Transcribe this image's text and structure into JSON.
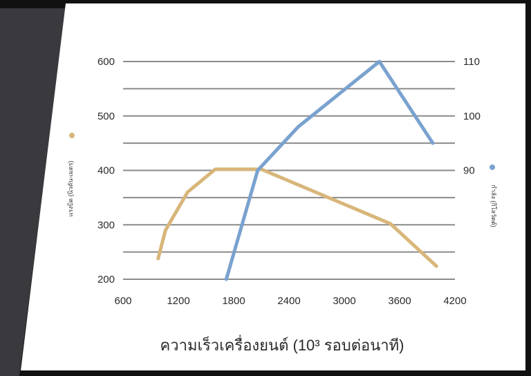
{
  "colors": {
    "background_dark": "#111111",
    "panel_grey": "#3a3a3e",
    "card": "#ffffff",
    "grid": "#8a8a8a",
    "torque": "#d8b67a",
    "power": "#7aa2cf",
    "text": "#2a2a2a"
  },
  "chart_data": {
    "type": "line",
    "title": "",
    "xlabel": "ความเร็วเครื่องยนต์ (10³ รอบต่อนาที)",
    "ylabel_left": "แรงบิด (นิวตัน-เมตร)",
    "ylabel_right": "กำลัง (กิโลวัตต์)",
    "x_ticks": [
      "600",
      "1200",
      "1800",
      "2400",
      "3000",
      "3600",
      "4200"
    ],
    "y_left_ticks": [
      "200",
      "300",
      "400",
      "500",
      "600"
    ],
    "y_right_ticks": [
      "90",
      "100",
      "110"
    ],
    "xlim": [
      600,
      4200
    ],
    "ylim_left": [
      200,
      600
    ],
    "ylim_right": [
      70,
      110
    ],
    "grid": true,
    "series": [
      {
        "axis": "left",
        "color": "#d8b67a",
        "points": [
          [
            980,
            238
          ],
          [
            1060,
            290
          ],
          [
            1300,
            360
          ],
          [
            1600,
            402
          ],
          [
            2100,
            402
          ],
          [
            3500,
            302
          ],
          [
            4000,
            224
          ]
        ]
      },
      {
        "axis": "right",
        "color": "#7aa2cf",
        "points": [
          [
            1720,
            70
          ],
          [
            2060,
            90
          ],
          [
            2500,
            98
          ],
          [
            3380,
            110
          ],
          [
            3960,
            95
          ]
        ]
      }
    ]
  }
}
